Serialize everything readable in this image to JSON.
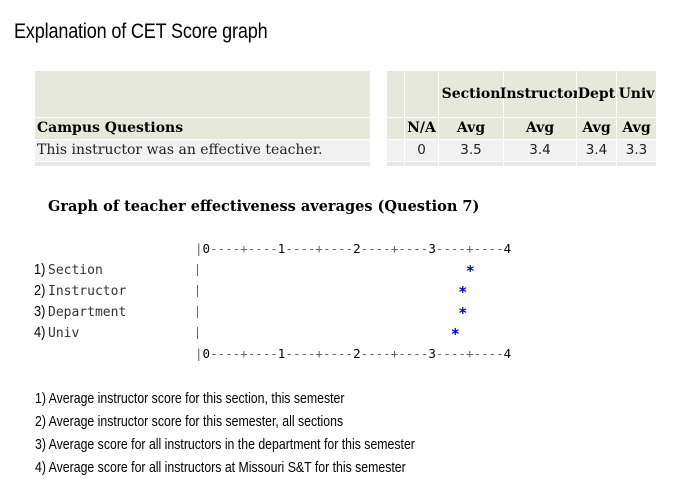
{
  "title": "Explanation of CET Score graph",
  "table": {
    "header_group": [
      "Section",
      "Instructor",
      "Dept",
      "Univ"
    ],
    "campus_label": "Campus Questions",
    "columns": [
      "N/A",
      "Avg",
      "Avg",
      "Avg",
      "Avg"
    ],
    "row": {
      "question": "This instructor was an effective teacher.",
      "na": "0",
      "section": "3.5",
      "instructor": "3.4",
      "dept": "3.4",
      "univ": "3.3"
    }
  },
  "graph": {
    "title": "Graph of teacher effectiveness averages (Question 7)",
    "scale_labels": [
      "0",
      "1",
      "2",
      "3",
      "4"
    ],
    "items": [
      {
        "num": "1)",
        "label": "Section",
        "value": 3.5
      },
      {
        "num": "2)",
        "label": "Instructor",
        "value": 3.4
      },
      {
        "num": "3)",
        "label": "Department",
        "value": 3.4
      },
      {
        "num": "4)",
        "label": "Univ",
        "value": 3.3
      }
    ],
    "marker": "*",
    "marker_color": "#0000cc"
  },
  "legend": [
    "1)  Average instructor score for this section, this semester",
    "2)  Average instructor score for this semester, all sections",
    "3)  Average score for all instructors in the department for this semester",
    "4)  Average score for all instructors at Missouri S&T for this semester"
  ]
}
